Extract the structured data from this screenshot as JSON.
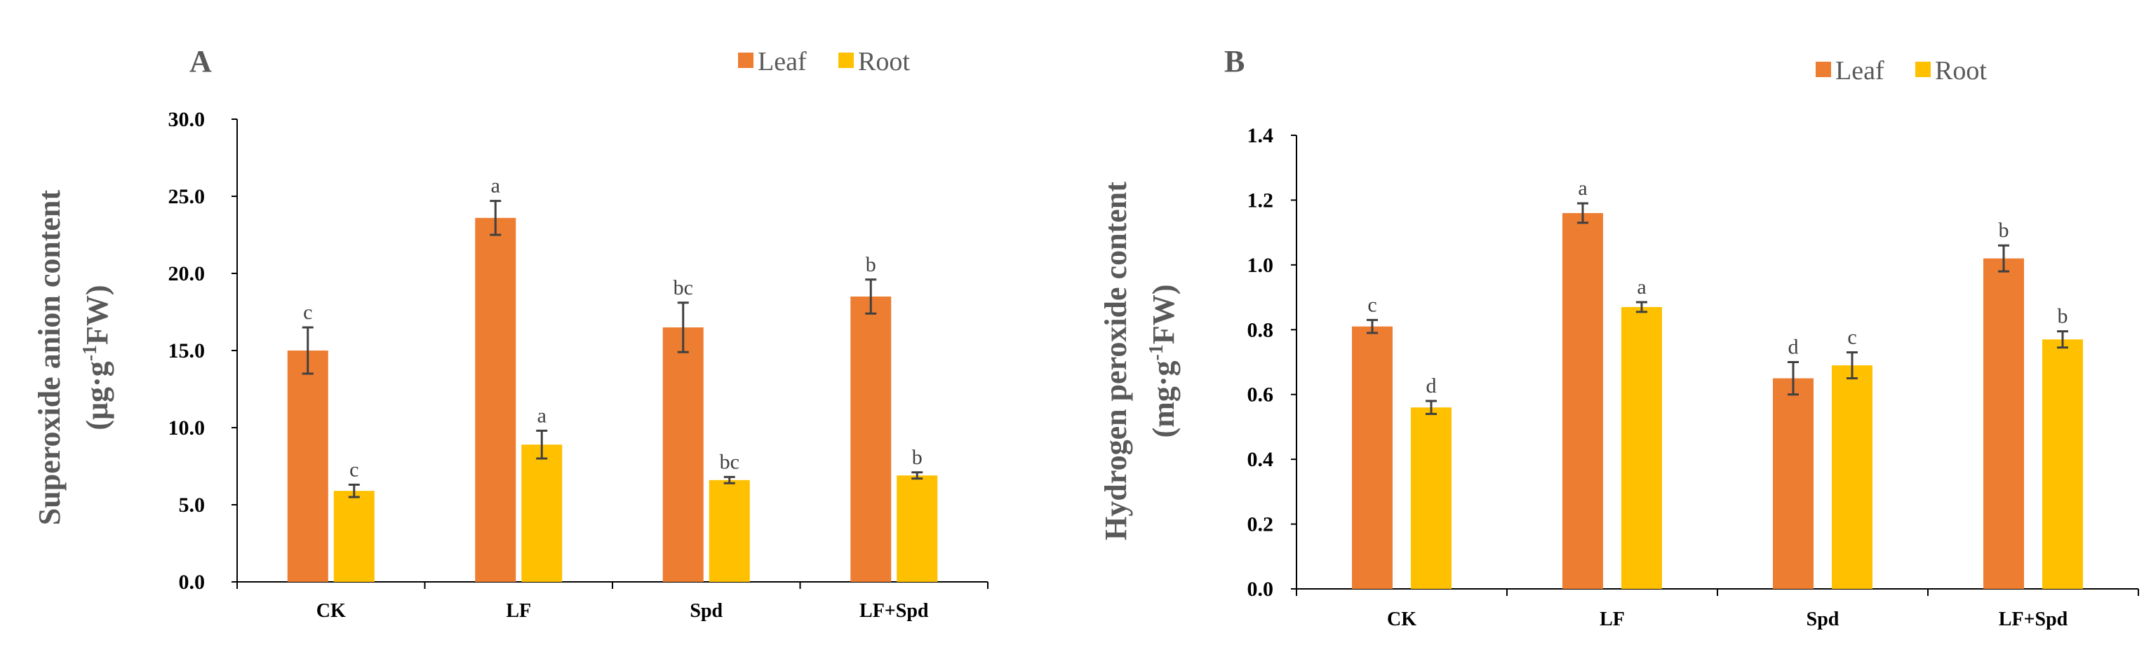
{
  "colors": {
    "leaf": "#ED7D31",
    "root": "#FFC000",
    "error_bar": "#404040"
  },
  "chart_data": [
    {
      "type": "bar",
      "panel": "A",
      "ylabel_line1": "Superoxide anion content",
      "ylabel_unit_pre": "(μg·g",
      "ylabel_unit_sup": "-1",
      "ylabel_unit_post": "FW)",
      "ylim": [
        0,
        30
      ],
      "yticks": [
        "0.0",
        "5.0",
        "10.0",
        "15.0",
        "20.0",
        "25.0",
        "30.0"
      ],
      "categories": [
        "CK",
        "LF",
        "Spd",
        "LF+Spd"
      ],
      "legend": "top-right",
      "series": [
        {
          "name": "Leaf",
          "color": "#ED7D31",
          "values": [
            15.0,
            23.6,
            16.5,
            18.5
          ],
          "errors": [
            1.5,
            1.1,
            1.6,
            1.1
          ],
          "letters": [
            "c",
            "a",
            "bc",
            "b"
          ]
        },
        {
          "name": "Root",
          "color": "#FFC000",
          "values": [
            5.9,
            8.9,
            6.6,
            6.9
          ],
          "errors": [
            0.4,
            0.9,
            0.2,
            0.2
          ],
          "letters": [
            "c",
            "a",
            "bc",
            "b"
          ]
        }
      ]
    },
    {
      "type": "bar",
      "panel": "B",
      "ylabel_line1": "Hydrogen peroxide content",
      "ylabel_unit_pre": "(mg·g",
      "ylabel_unit_sup": "-1",
      "ylabel_unit_post": "FW)",
      "ylim": [
        0,
        1.4
      ],
      "yticks": [
        "0.0",
        "0.2",
        "0.4",
        "0.6",
        "0.8",
        "1.0",
        "1.2",
        "1.4"
      ],
      "categories": [
        "CK",
        "LF",
        "Spd",
        "LF+Spd"
      ],
      "legend": "top-right",
      "series": [
        {
          "name": "Leaf",
          "color": "#ED7D31",
          "values": [
            0.81,
            1.16,
            0.65,
            1.02
          ],
          "errors": [
            0.02,
            0.03,
            0.05,
            0.04
          ],
          "letters": [
            "c",
            "a",
            "d",
            "b"
          ]
        },
        {
          "name": "Root",
          "color": "#FFC000",
          "values": [
            0.56,
            0.87,
            0.69,
            0.77
          ],
          "errors": [
            0.02,
            0.015,
            0.04,
            0.025
          ],
          "letters": [
            "d",
            "a",
            "c",
            "b"
          ]
        }
      ]
    }
  ]
}
